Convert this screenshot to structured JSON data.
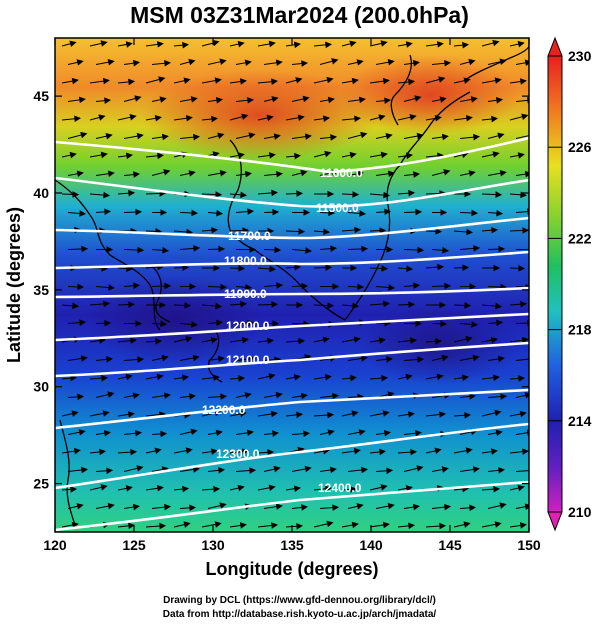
{
  "title": "MSM 03Z31Mar2024 (200.0hPa)",
  "map": {
    "xlabel": "Longitude (degrees)",
    "ylabel": "Latitude  (degrees)",
    "lon_range": [
      120,
      150
    ],
    "lat_range": [
      22.5,
      48
    ],
    "x_ticks": [
      "120",
      "125",
      "130",
      "135",
      "140",
      "145",
      "150"
    ],
    "y_ticks": [
      "25",
      "30",
      "35",
      "40",
      "45"
    ],
    "field": "temperature (shaded)",
    "contour_labels": [
      "11600.0",
      "11500.0",
      "11700.0",
      "11800.0",
      "11900.0",
      "12000.0",
      "12100.0",
      "12200.0",
      "12300.0",
      "12400.0"
    ],
    "wind_vectors": "westerly"
  },
  "colorbar": {
    "labels": [
      "230",
      "226",
      "222",
      "218",
      "214",
      "210"
    ],
    "min": 210,
    "max": 230
  },
  "credits": {
    "line1": "Drawing by DCL (https://www.gfd-dennou.org/library/dcl/)",
    "line2": "Data from http://database.rish.kyoto-u.ac.jp/arch/jmadata/"
  },
  "colors": {
    "warm": "#e8501e",
    "mid": "#30c040",
    "cool": "#2030c0",
    "contour": "#ffffff"
  }
}
